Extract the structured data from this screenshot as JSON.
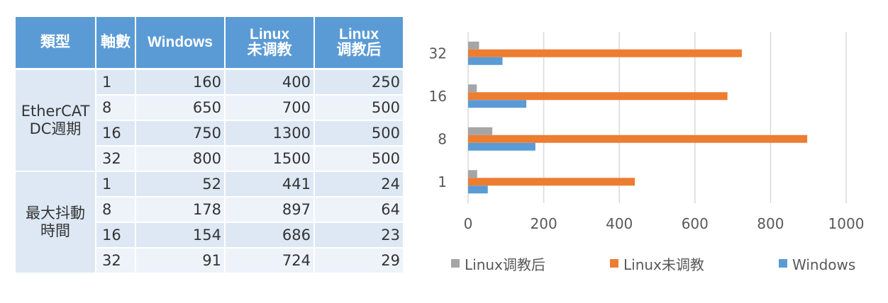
{
  "table": {
    "headers": [
      "類型",
      "軸數",
      "Windows",
      "Linux\n未调教",
      "Linux\n调教后"
    ],
    "groups": [
      {
        "type_label": "EtherCAT\nDC週期",
        "rows": [
          {
            "axis": "1",
            "windows": "160",
            "linux_untuned": "400",
            "linux_tuned": "250"
          },
          {
            "axis": "8",
            "windows": "650",
            "linux_untuned": "700",
            "linux_tuned": "500"
          },
          {
            "axis": "16",
            "windows": "750",
            "linux_untuned": "1300",
            "linux_tuned": "500"
          },
          {
            "axis": "32",
            "windows": "800",
            "linux_untuned": "1500",
            "linux_tuned": "500"
          }
        ]
      },
      {
        "type_label": "最大抖動\n時間",
        "rows": [
          {
            "axis": "1",
            "windows": "52",
            "linux_untuned": "441",
            "linux_tuned": "24"
          },
          {
            "axis": "8",
            "windows": "178",
            "linux_untuned": "897",
            "linux_tuned": "64"
          },
          {
            "axis": "16",
            "windows": "154",
            "linux_untuned": "686",
            "linux_tuned": "23"
          },
          {
            "axis": "32",
            "windows": "91",
            "linux_untuned": "724",
            "linux_tuned": "29"
          }
        ]
      }
    ]
  },
  "colors": {
    "header_bg": "#5b9bd5",
    "row_dark": "#dde8f4",
    "row_light": "#eef3fa",
    "windows": "#5b9bd5",
    "linux_untuned": "#ed7d31",
    "linux_tuned": "#a5a5a5",
    "grid": "#d9d9d9"
  },
  "chart_data": {
    "type": "bar",
    "orientation": "horizontal",
    "categories": [
      "1",
      "8",
      "16",
      "32"
    ],
    "series": [
      {
        "name": "Linux调教后",
        "values": [
          24,
          64,
          23,
          29
        ]
      },
      {
        "name": "Linux未调教",
        "values": [
          441,
          897,
          686,
          724
        ]
      },
      {
        "name": "Windows",
        "values": [
          52,
          178,
          154,
          91
        ]
      }
    ],
    "xlim": [
      0,
      1000
    ],
    "xticks": [
      "0",
      "200",
      "400",
      "600",
      "800",
      "1000"
    ],
    "grid": "vertical",
    "legend_position": "bottom"
  }
}
